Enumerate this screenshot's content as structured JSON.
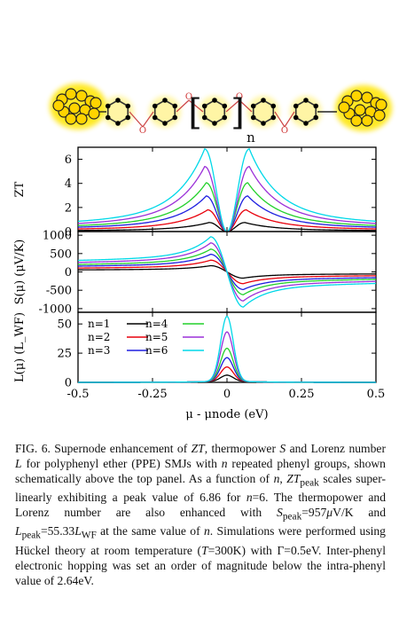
{
  "molecule": {
    "bracket_left": "[",
    "bracket_right": "]",
    "subscript": "n",
    "oxygen": "O"
  },
  "chart_data": [
    {
      "type": "line",
      "panel": "ZT",
      "ylabel": "ZT",
      "xlim": [
        -0.5,
        0.5
      ],
      "ylim": [
        0,
        7
      ],
      "yticks": [
        "0",
        "2",
        "4",
        "6"
      ],
      "ytick_values": [
        0,
        2,
        4,
        6
      ],
      "series": [
        {
          "label": "n=1",
          "color": "#000000",
          "peak": 0.75,
          "peak_x": 0.06
        },
        {
          "label": "n=2",
          "color": "#e8000b",
          "peak": 1.8,
          "peak_x": 0.065
        },
        {
          "label": "n=3",
          "color": "#1f1fe0",
          "peak": 2.95,
          "peak_x": 0.07
        },
        {
          "label": "n=4",
          "color": "#22d02a",
          "peak": 4.05,
          "peak_x": 0.07
        },
        {
          "label": "n=5",
          "color": "#9b30d8",
          "peak": 5.4,
          "peak_x": 0.075
        },
        {
          "label": "n=6",
          "color": "#00d8e8",
          "peak": 6.86,
          "peak_x": 0.075
        }
      ]
    },
    {
      "type": "line",
      "panel": "S",
      "ylabel": "S(μ) (μV/K)",
      "xlim": [
        -0.5,
        0.5
      ],
      "ylim": [
        -1100,
        1100
      ],
      "yticks": [
        "1000",
        "500",
        "0",
        "-500",
        "-1000"
      ],
      "ytick_values": [
        1000,
        500,
        0,
        -500,
        -1000
      ],
      "series": [
        {
          "label": "n=1",
          "color": "#000000",
          "peak": 170
        },
        {
          "label": "n=2",
          "color": "#e8000b",
          "peak": 320
        },
        {
          "label": "n=3",
          "color": "#1f1fe0",
          "peak": 480
        },
        {
          "label": "n=4",
          "color": "#22d02a",
          "peak": 620
        },
        {
          "label": "n=5",
          "color": "#9b30d8",
          "peak": 790
        },
        {
          "label": "n=6",
          "color": "#00d8e8",
          "peak": 957
        }
      ]
    },
    {
      "type": "line",
      "panel": "L",
      "ylabel": "L(μ) (L_WF)",
      "xlabel": "μ - μnode (eV)",
      "xlim": [
        -0.5,
        0.5
      ],
      "ylim": [
        0,
        60
      ],
      "xticks": [
        "-0.5",
        "-0.25",
        "0",
        "0.25",
        "0.5"
      ],
      "xtick_values": [
        -0.5,
        -0.25,
        0,
        0.25,
        0.5
      ],
      "yticks": [
        "0",
        "25",
        "50"
      ],
      "ytick_values": [
        0,
        25,
        50
      ],
      "series": [
        {
          "label": "n=1",
          "color": "#000000",
          "peak": 5
        },
        {
          "label": "n=2",
          "color": "#e8000b",
          "peak": 12
        },
        {
          "label": "n=3",
          "color": "#1f1fe0",
          "peak": 20
        },
        {
          "label": "n=4",
          "color": "#22d02a",
          "peak": 28
        },
        {
          "label": "n=5",
          "color": "#9b30d8",
          "peak": 42
        },
        {
          "label": "n=6",
          "color": "#00d8e8",
          "peak": 55.33
        }
      ],
      "legend": [
        "n=1",
        "n=2",
        "n=3",
        "n=4",
        "n=5",
        "n=6"
      ]
    }
  ],
  "caption": {
    "label": "FIG. 6.",
    "text_html": " Supernode enhancement of <i>ZT</i>, thermopower <i>S</i> and Lorenz number <i>L</i> for polyphenyl ether (PPE) SMJs with <i>n</i> repeated phenyl groups, shown schematically above the top panel. As a function of <i>n</i>, <i>ZT</i><sub>peak</sub> scales super-linearly exhibiting a peak value of 6.86 for <i>n</i>=6. The thermopower and Lorenz number are also enhanced with <i>S</i><sub>peak</sub>=957<i>μ</i>V/K and <i>L</i><sub>peak</sub>=55.33<i>L</i><sub>WF</sub> at the same value of <i>n</i>. Simulations were performed using Hückel theory at room temperature (<i>T</i>=300K) with Γ=0.5eV. Inter-phenyl electronic hopping was set an order of magnitude below the intra-phenyl value of 2.64eV."
  }
}
